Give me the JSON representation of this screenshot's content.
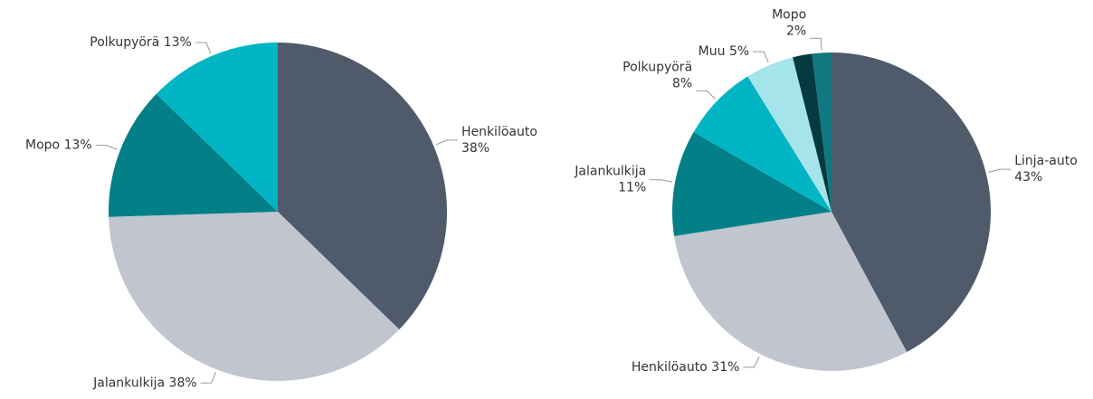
{
  "chart_data": [
    {
      "type": "pie",
      "categories": [
        "Henkilöauto",
        "Jalankulkija",
        "Mopo",
        "Polkupyörä"
      ],
      "values": [
        38,
        38,
        13,
        13
      ],
      "value_labels": [
        "38%",
        "38%",
        "13%",
        "13%"
      ],
      "colors": [
        "#4f5b6b",
        "#c0c5cf",
        "#037f87",
        "#02b5c5"
      ]
    },
    {
      "type": "pie",
      "categories": [
        "Linja-auto",
        "Henkilöauto",
        "Jalankulkija",
        "Polkupyörä",
        "Muu",
        null,
        "Mopo"
      ],
      "values": [
        43,
        31,
        11,
        8,
        5,
        2,
        2
      ],
      "value_labels": [
        "43%",
        "31%",
        "11%",
        "8%",
        "5%",
        null,
        "2%"
      ],
      "colors": [
        "#4f5b6b",
        "#c0c5cf",
        "#037f87",
        "#02b5c5",
        "#a6e4ec",
        "#053a40",
        "#0f7880"
      ]
    }
  ]
}
